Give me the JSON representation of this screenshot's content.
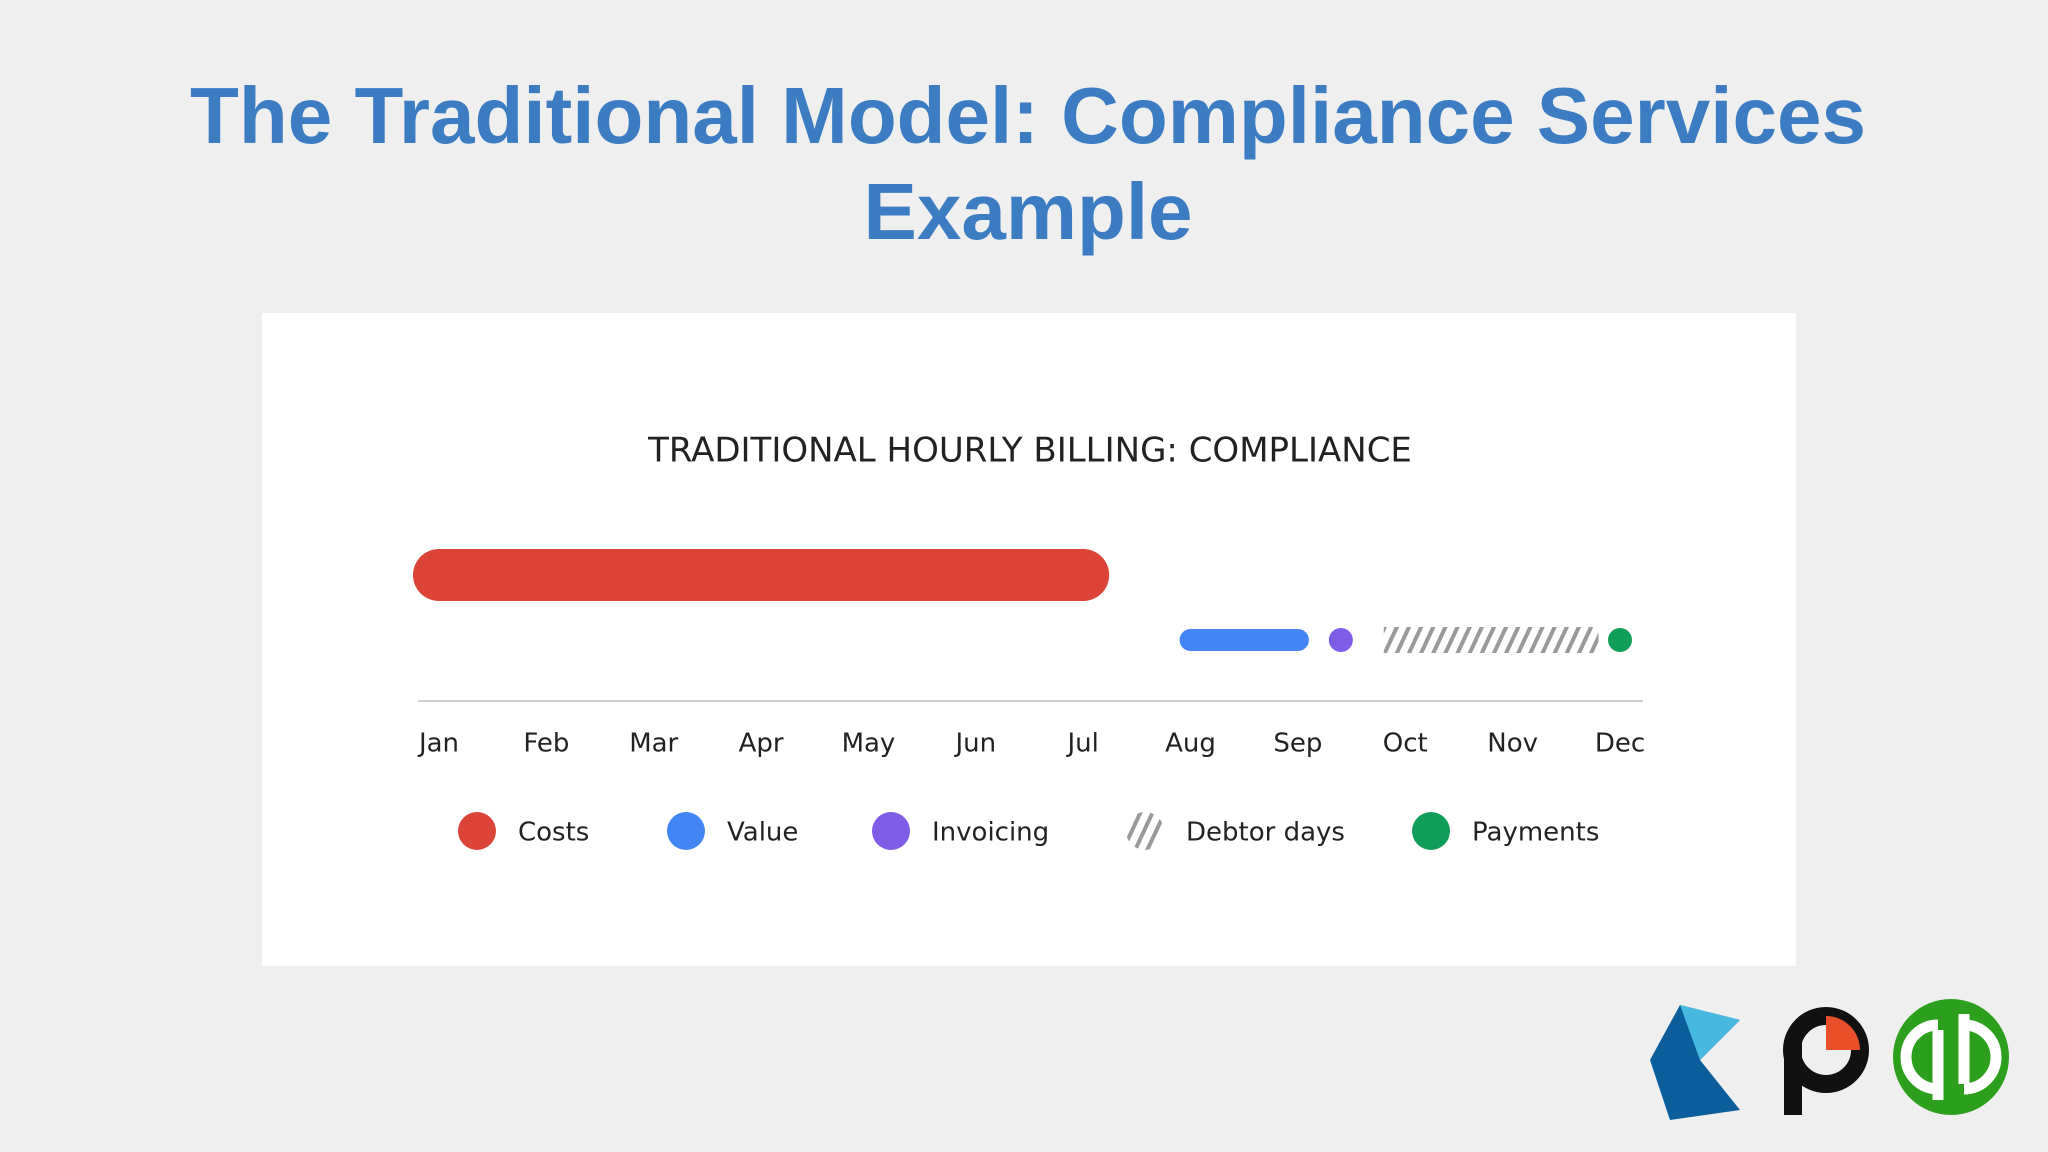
{
  "title_lines": [
    "The Traditional Model: Compliance Services",
    "Example"
  ],
  "chart_data": {
    "type": "timeline",
    "title": "TRADITIONAL HOURLY BILLING: COMPLIANCE",
    "xlim": [
      0,
      11
    ],
    "xticks": [
      {
        "value": 0,
        "label": "Jan"
      },
      {
        "value": 1,
        "label": "Feb"
      },
      {
        "value": 2,
        "label": "Mar"
      },
      {
        "value": 3,
        "label": "Apr"
      },
      {
        "value": 4,
        "label": "May"
      },
      {
        "value": 5,
        "label": "Jun"
      },
      {
        "value": 6,
        "label": "Jul"
      },
      {
        "value": 7,
        "label": "Aug"
      },
      {
        "value": 8,
        "label": "Sep"
      },
      {
        "value": 9,
        "label": "Oct"
      },
      {
        "value": 10,
        "label": "Nov"
      },
      {
        "value": 11,
        "label": "Dec"
      }
    ],
    "series": [
      {
        "name": "Costs",
        "color": "#db4437",
        "start": 0,
        "end": 6
      },
      {
        "name": "Value",
        "color": "#4285f4",
        "start": 7,
        "end": 8
      },
      {
        "name": "Invoicing",
        "color": "#7e5ce6",
        "x": 8.4
      },
      {
        "name": "Debtor days",
        "color": "#9a9a9a",
        "start": 8.8,
        "end": 10.8,
        "hatched": true
      },
      {
        "name": "Payments",
        "color": "#0f9d58",
        "x": 11
      }
    ]
  }
}
